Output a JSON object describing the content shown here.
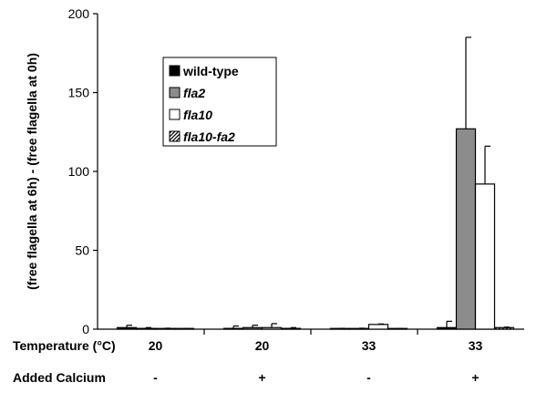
{
  "chart_data": {
    "type": "bar",
    "ylabel": "(free flagella at 6h) - (free flagella at 0h)",
    "ylim": [
      0,
      200
    ],
    "yticks": [
      0,
      50,
      100,
      150,
      200
    ],
    "categories": [
      {
        "temperature": "20",
        "calcium": "-"
      },
      {
        "temperature": "20",
        "calcium": "+"
      },
      {
        "temperature": "33",
        "calcium": "-"
      },
      {
        "temperature": "33",
        "calcium": "+"
      }
    ],
    "row_labels": {
      "temperature": "Temperature (°C)",
      "calcium": "Added Calcium"
    },
    "series": [
      {
        "name": "wild-type",
        "name_italic": false,
        "fill": "solid-black",
        "values": [
          1,
          0.5,
          0.2,
          1
        ],
        "errors": [
          1.5,
          1.5,
          0.3,
          4
        ]
      },
      {
        "name": "fla2",
        "name_italic": true,
        "fill": "gray",
        "values": [
          0.5,
          1,
          0.3,
          127
        ],
        "errors": [
          0.5,
          1.5,
          0.3,
          58
        ]
      },
      {
        "name": "fla10",
        "name_italic": true,
        "fill": "white",
        "values": [
          0.3,
          1,
          3,
          92
        ],
        "errors": [
          0.3,
          2.5,
          0.3,
          24
        ]
      },
      {
        "name": "fla10-fa2",
        "name_italic": true,
        "fill": "hatched",
        "values": [
          0.2,
          0.5,
          0.2,
          1
        ],
        "errors": [
          0.2,
          0.5,
          0.2,
          0.3
        ]
      }
    ],
    "legend": "top-left inside plot",
    "colors": {
      "solid-black": "#000000",
      "gray": "#8c8c8c",
      "white": "#ffffff"
    }
  }
}
